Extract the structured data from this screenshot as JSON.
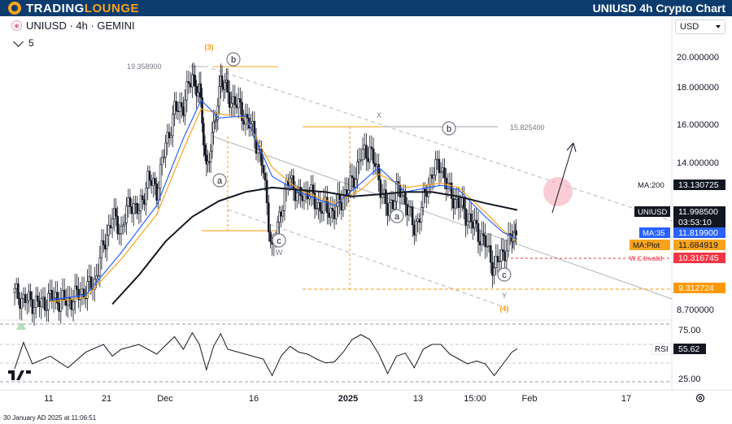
{
  "header": {
    "logo_text_a": "TRADING",
    "logo_text_b": "LOUNGE",
    "title": "UNIUSD 4h Crypto Chart"
  },
  "symbol": {
    "label": "UNIUSD · 4h · GEMINI",
    "interval_count": "5",
    "currency": "USD"
  },
  "footer": {
    "timestamp": "30 January AD 2025 at 11:06:51"
  },
  "colors": {
    "candle": "#131722",
    "ma200": "#131722",
    "ma35": "#2962ff",
    "maplot": "#f7a41d",
    "invalid": "#f23645",
    "fib": "#ff9800",
    "channel": "#b2b5be",
    "rsi": "#131722"
  },
  "chart_data": {
    "type": "line",
    "symbol": "UNIUSD",
    "timeframe": "4h",
    "exchange": "GEMINI",
    "x_ticks": [
      "11",
      "21",
      "Dec",
      "16",
      "2025",
      "13",
      "15:00",
      "Feb",
      "17"
    ],
    "y_ticks": [
      "20.000000",
      "18.000000",
      "16.000000",
      "14.000000",
      "8.700000"
    ],
    "ylim": [
      8.2,
      21.0
    ],
    "close_path": [
      [
        0,
        9.4
      ],
      [
        5,
        9.1
      ],
      [
        10,
        9.0
      ],
      [
        15,
        8.9
      ],
      [
        20,
        9.2
      ],
      [
        25,
        9.1
      ],
      [
        30,
        9.0
      ],
      [
        35,
        9.3
      ],
      [
        40,
        9.5
      ],
      [
        45,
        9.9
      ],
      [
        50,
        11.5
      ],
      [
        55,
        12.8
      ],
      [
        60,
        12.2
      ],
      [
        65,
        13.5
      ],
      [
        70,
        13.0
      ],
      [
        75,
        14.5
      ],
      [
        80,
        14.0
      ],
      [
        85,
        16.0
      ],
      [
        90,
        17.5
      ],
      [
        95,
        17.8
      ],
      [
        100,
        19.1
      ],
      [
        104,
        18.3
      ],
      [
        108,
        15.0
      ],
      [
        112,
        16.5
      ],
      [
        116,
        19.0
      ],
      [
        120,
        18.2
      ],
      [
        125,
        17.8
      ],
      [
        130,
        17.2
      ],
      [
        135,
        16.5
      ],
      [
        140,
        14.8
      ],
      [
        145,
        11.2
      ],
      [
        150,
        13.2
      ],
      [
        155,
        14.6
      ],
      [
        160,
        13.6
      ],
      [
        165,
        14.0
      ],
      [
        170,
        13.3
      ],
      [
        175,
        13.2
      ],
      [
        180,
        13.0
      ],
      [
        185,
        13.7
      ],
      [
        190,
        14.3
      ],
      [
        195,
        15.5
      ],
      [
        200,
        15.8
      ],
      [
        205,
        14.5
      ],
      [
        210,
        13.0
      ],
      [
        215,
        14.0
      ],
      [
        220,
        13.6
      ],
      [
        225,
        12.2
      ],
      [
        230,
        13.5
      ],
      [
        235,
        14.8
      ],
      [
        240,
        15.1
      ],
      [
        245,
        13.8
      ],
      [
        250,
        13.4
      ],
      [
        255,
        12.8
      ],
      [
        260,
        12.2
      ],
      [
        265,
        11.6
      ],
      [
        270,
        10.5
      ],
      [
        275,
        11.2
      ],
      [
        280,
        11.9
      ],
      [
        283,
        12.0
      ]
    ],
    "ma35_path": [
      [
        20,
        9.1
      ],
      [
        40,
        9.3
      ],
      [
        60,
        11.2
      ],
      [
        80,
        13.3
      ],
      [
        95,
        16.3
      ],
      [
        105,
        18.0
      ],
      [
        115,
        17.2
      ],
      [
        130,
        17.3
      ],
      [
        145,
        14.6
      ],
      [
        160,
        13.9
      ],
      [
        180,
        13.3
      ],
      [
        195,
        14.3
      ],
      [
        205,
        15.0
      ],
      [
        220,
        13.9
      ],
      [
        240,
        14.2
      ],
      [
        250,
        14.0
      ],
      [
        265,
        12.8
      ],
      [
        275,
        12.1
      ],
      [
        283,
        11.8
      ]
    ],
    "maplot_path": [
      [
        20,
        9.0
      ],
      [
        40,
        9.2
      ],
      [
        60,
        10.9
      ],
      [
        80,
        12.9
      ],
      [
        95,
        15.8
      ],
      [
        105,
        17.6
      ],
      [
        115,
        17.4
      ],
      [
        130,
        17.2
      ],
      [
        145,
        15.0
      ],
      [
        160,
        14.0
      ],
      [
        180,
        13.4
      ],
      [
        195,
        14.0
      ],
      [
        205,
        14.7
      ],
      [
        220,
        14.1
      ],
      [
        240,
        14.3
      ],
      [
        250,
        14.1
      ],
      [
        265,
        13.0
      ],
      [
        275,
        12.2
      ],
      [
        283,
        11.7
      ]
    ],
    "ma200_path": [
      [
        55,
        8.9
      ],
      [
        70,
        10.2
      ],
      [
        85,
        11.7
      ],
      [
        100,
        12.8
      ],
      [
        115,
        13.5
      ],
      [
        130,
        13.9
      ],
      [
        145,
        14.1
      ],
      [
        160,
        14.0
      ],
      [
        175,
        13.9
      ],
      [
        190,
        13.7
      ],
      [
        205,
        13.8
      ],
      [
        220,
        13.9
      ],
      [
        235,
        13.9
      ],
      [
        250,
        13.7
      ],
      [
        265,
        13.4
      ],
      [
        283,
        13.1
      ]
    ],
    "rsi_path": [
      [
        0,
        35
      ],
      [
        5,
        62
      ],
      [
        10,
        40
      ],
      [
        20,
        48
      ],
      [
        30,
        36
      ],
      [
        40,
        52
      ],
      [
        50,
        60
      ],
      [
        55,
        48
      ],
      [
        60,
        55
      ],
      [
        70,
        60
      ],
      [
        80,
        50
      ],
      [
        90,
        68
      ],
      [
        95,
        55
      ],
      [
        100,
        72
      ],
      [
        104,
        60
      ],
      [
        108,
        34
      ],
      [
        112,
        58
      ],
      [
        116,
        71
      ],
      [
        120,
        55
      ],
      [
        130,
        50
      ],
      [
        140,
        45
      ],
      [
        145,
        28
      ],
      [
        150,
        48
      ],
      [
        155,
        58
      ],
      [
        160,
        52
      ],
      [
        165,
        50
      ],
      [
        170,
        45
      ],
      [
        175,
        41
      ],
      [
        180,
        42
      ],
      [
        185,
        52
      ],
      [
        190,
        65
      ],
      [
        195,
        70
      ],
      [
        200,
        65
      ],
      [
        205,
        50
      ],
      [
        210,
        30
      ],
      [
        215,
        48
      ],
      [
        220,
        51
      ],
      [
        225,
        36
      ],
      [
        230,
        55
      ],
      [
        235,
        60
      ],
      [
        240,
        60
      ],
      [
        245,
        50
      ],
      [
        250,
        45
      ],
      [
        255,
        40
      ],
      [
        260,
        43
      ],
      [
        265,
        40
      ],
      [
        270,
        28
      ],
      [
        275,
        40
      ],
      [
        280,
        52
      ],
      [
        283,
        55.62
      ]
    ],
    "rsi_levels": [
      "75.00",
      "25.00"
    ],
    "price_labels": [
      {
        "name": "MA:200",
        "value": "13.130725"
      },
      {
        "name": "UNIUSD",
        "value": "11.998500",
        "sub": "03:53:10"
      },
      {
        "name": "MA:35",
        "value": "11.819900"
      },
      {
        "name": "MA:Plot",
        "value": "11.684919"
      },
      {
        "name": "W.C.Invalid",
        "value": "10.316745"
      },
      {
        "name": "",
        "value": "9.312724"
      },
      {
        "name": "RSI",
        "value": "55.62"
      }
    ],
    "annotations": {
      "peak_label": "19.358900",
      "level_label": "15.825400",
      "wave_3": "(3)",
      "wave_4": "(4)",
      "wave_b1": "b",
      "wave_a1": "a",
      "wave_c1": "c",
      "wave_w": "W",
      "wave_x": "X",
      "wave_a2": "a",
      "wave_b2": "b",
      "wave_c2": "c",
      "wave_y": "Y"
    }
  }
}
